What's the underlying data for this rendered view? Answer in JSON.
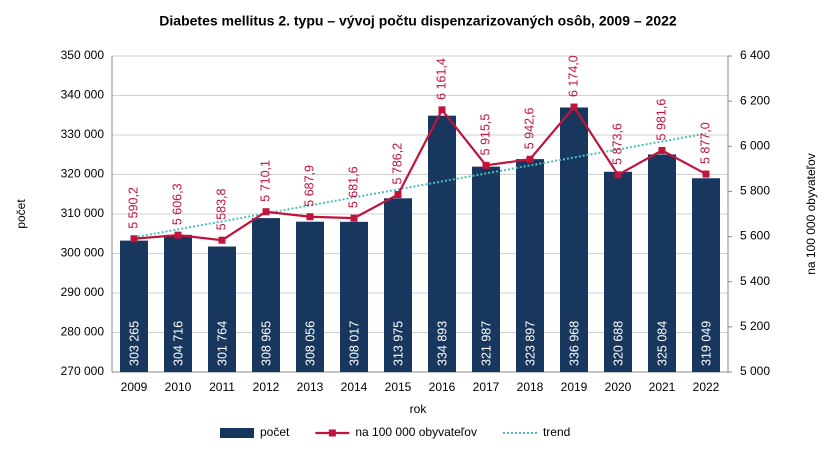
{
  "chart_data": {
    "type": "bar_line",
    "title": "Diabetes mellitus 2. typu – vývoj počtu dispenzarizovaných osôb, 2009 – 2022",
    "x_label": "rok",
    "y_label": "počet",
    "y2_label": "na 100 000 obyvateľov",
    "categories": [
      "2009",
      "2010",
      "2011",
      "2012",
      "2013",
      "2014",
      "2015",
      "2016",
      "2017",
      "2018",
      "2019",
      "2020",
      "2021",
      "2022"
    ],
    "series": [
      {
        "name": "počet",
        "type": "bar",
        "color": "#17375e",
        "values": [
          303265,
          304716,
          301764,
          308965,
          308056,
          308017,
          313975,
          334893,
          321987,
          323897,
          336968,
          320688,
          325084,
          319049
        ],
        "value_labels": [
          "303 265",
          "304 716",
          "301 764",
          "308 965",
          "308 056",
          "308 017",
          "313 975",
          "334 893",
          "321 987",
          "323 897",
          "336 968",
          "320 688",
          "325 084",
          "319 049"
        ]
      },
      {
        "name": "na 100 000 obyvateľov",
        "type": "line",
        "axis": "y2",
        "color": "#c0143c",
        "values": [
          5590.2,
          5606.3,
          5583.8,
          5710.1,
          5687.9,
          5681.6,
          5786.2,
          6161.4,
          5915.5,
          5942.6,
          6174.0,
          5873.6,
          5981.6,
          5877.0
        ],
        "value_labels": [
          "5 590,2",
          "5 606,3",
          "5 583,8",
          "5 710,1",
          "5 687,9",
          "5 681,6",
          "5 786,2",
          "6 161,4",
          "5 915,5",
          "5 942,6",
          "6 174,0",
          "5 873,6",
          "5 981,6",
          "5 877,0"
        ]
      },
      {
        "name": "trend",
        "type": "trend",
        "axis": "y2",
        "color": "#4bbfbf",
        "values": [
          5596.5,
          5631.9,
          5667.3,
          5702.7,
          5738.1,
          5773.5,
          5808.9,
          5844.3,
          5879.7,
          5915.1,
          5950.5,
          5985.9,
          6021.3,
          6056.7
        ]
      }
    ],
    "ylim": [
      270000,
      350000
    ],
    "yticks": [
      {
        "value": 270000,
        "label": "270 000"
      },
      {
        "value": 280000,
        "label": "280 000"
      },
      {
        "value": 290000,
        "label": "290 000"
      },
      {
        "value": 300000,
        "label": "300 000"
      },
      {
        "value": 310000,
        "label": "310 000"
      },
      {
        "value": 320000,
        "label": "320 000"
      },
      {
        "value": 330000,
        "label": "330 000"
      },
      {
        "value": 340000,
        "label": "340 000"
      },
      {
        "value": 350000,
        "label": "350 000"
      }
    ],
    "y2lim": [
      5000,
      6400
    ],
    "y2ticks": [
      {
        "value": 5000,
        "label": "5 000"
      },
      {
        "value": 5200,
        "label": "5 200"
      },
      {
        "value": 5400,
        "label": "5 400"
      },
      {
        "value": 5600,
        "label": "5 600"
      },
      {
        "value": 5800,
        "label": "5 800"
      },
      {
        "value": 6000,
        "label": "6 000"
      },
      {
        "value": 6200,
        "label": "6 200"
      },
      {
        "value": 6400,
        "label": "6 400"
      }
    ],
    "grid": true,
    "legend": "bottom"
  }
}
